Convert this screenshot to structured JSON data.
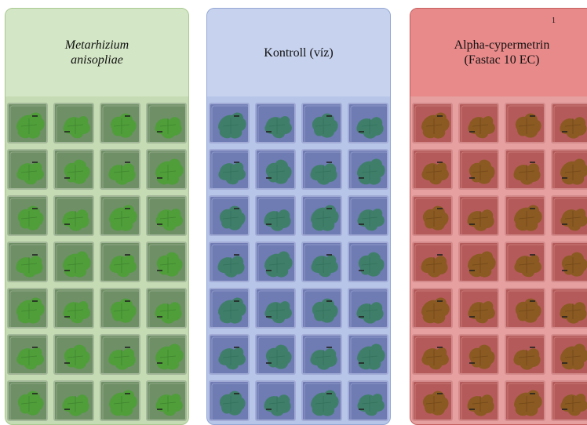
{
  "treatments": [
    {
      "title_line1": "Metarhizium",
      "title_line2": "anisopliae",
      "italic": true,
      "note": "",
      "colors": {
        "header": "#d3e6c5",
        "border": "#a9c98f",
        "grid_bg": "#c4dbb3",
        "well": "#6f8f66",
        "well_edge": "#a4b89a",
        "leaf": "#4f9e3a",
        "leaf_vein": "#3a7a2a"
      }
    },
    {
      "title_line1": "Kontroll (víz)",
      "title_line2": "",
      "italic": false,
      "note": "",
      "colors": {
        "header": "#c7d3ee",
        "border": "#93a6d3",
        "grid_bg": "#b7c5e8",
        "well": "#6f7bb3",
        "well_edge": "#a1abd6",
        "leaf": "#3f7f6a",
        "leaf_vein": "#2f6a57"
      }
    },
    {
      "title_line1": "Alpha-cypermetrin",
      "title_line2": "(Fastac 10 EC)",
      "italic": false,
      "note": "1",
      "colors": {
        "header": "#e88a8a",
        "border": "#c45e5e",
        "grid_bg": "#e6a0a0",
        "well": "#b45a5a",
        "well_edge": "#d48a8a",
        "leaf": "#8a5a22",
        "leaf_vein": "#6a3f14"
      }
    }
  ],
  "grid": {
    "rows": 7,
    "cols": 4
  }
}
